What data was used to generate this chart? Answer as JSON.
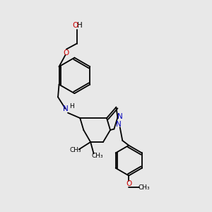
{
  "bg_color": "#e8e8e8",
  "bond_color": "#000000",
  "n_color": "#0000bb",
  "o_color": "#cc0000",
  "font_size": 7.5,
  "small_font": 6.5,
  "line_width": 1.3,
  "xlim": [
    0,
    10
  ],
  "ylim": [
    0,
    10
  ]
}
